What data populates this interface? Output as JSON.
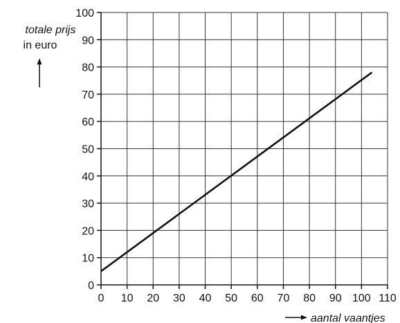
{
  "chart_data": {
    "type": "line",
    "title": "",
    "ylabel": {
      "line1": "totale prijs",
      "line2": "in euro"
    },
    "xlabel": "aantal vaantjes",
    "xlim": [
      0,
      110
    ],
    "ylim": [
      0,
      100
    ],
    "xticks": [
      0,
      10,
      20,
      30,
      40,
      50,
      60,
      70,
      80,
      90,
      100,
      110
    ],
    "yticks": [
      0,
      10,
      20,
      30,
      40,
      50,
      60,
      70,
      80,
      90,
      100
    ],
    "grid": true,
    "series": [
      {
        "x": [
          0,
          104
        ],
        "y": [
          5,
          78
        ]
      }
    ],
    "colors": {
      "line": "#111111",
      "grid": "#333333",
      "background": "#ffffff"
    }
  }
}
